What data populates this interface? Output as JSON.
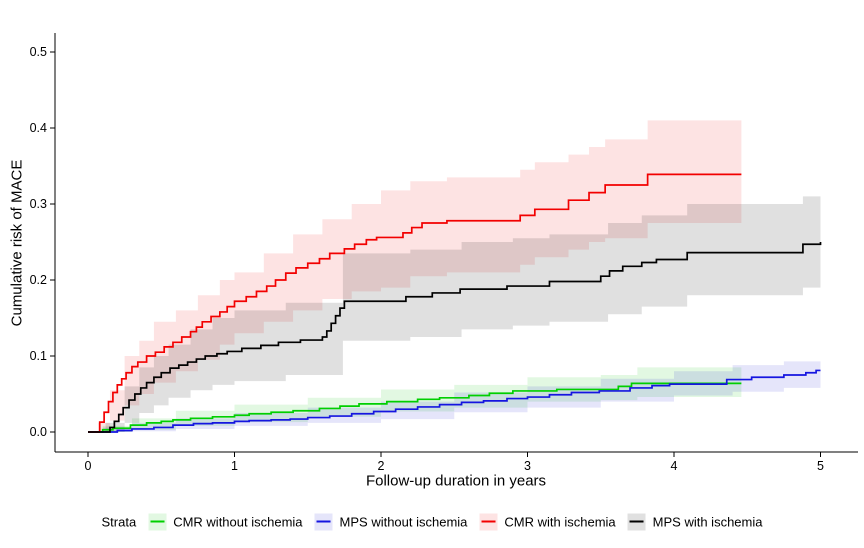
{
  "figure": {
    "background": "#FFFFFF",
    "axis_color": "#000000",
    "legend": {
      "title": "Strata",
      "position": "bottom"
    }
  },
  "chart_data": {
    "type": "line",
    "variant": "kaplan-meier-cumulative-incidence-step-curves-with-confidence-bands",
    "title": "",
    "xlabel": "Follow-up duration in years",
    "ylabel": "Cumulative risk of MACE",
    "xlim": [
      0,
      5
    ],
    "ylim": [
      0,
      0.5
    ],
    "grid": false,
    "legend_title": "Strata",
    "legend_position": "bottom",
    "x_ticks": {
      "values": [
        0,
        1,
        2,
        3,
        4,
        5
      ],
      "labels": [
        "0",
        "1",
        "2",
        "3",
        "4",
        "5"
      ]
    },
    "y_ticks": {
      "values": [
        0,
        0.1,
        0.2,
        0.3,
        0.4,
        0.5
      ],
      "labels": [
        "0.0",
        "0.1",
        "0.2",
        "0.3",
        "0.4",
        "0.5"
      ]
    },
    "series": [
      {
        "name": "CMR without ischemia",
        "color": "#00CF00",
        "band_fill": "rgba(0,190,0,0.115)",
        "steps": [
          [
            0,
            0
          ],
          [
            0.1,
            0.003
          ],
          [
            0.17,
            0.005
          ],
          [
            0.29,
            0.009
          ],
          [
            0.4,
            0.012
          ],
          [
            0.5,
            0.014
          ],
          [
            0.58,
            0.016
          ],
          [
            0.7,
            0.018
          ],
          [
            0.85,
            0.02
          ],
          [
            1.0,
            0.022
          ],
          [
            1.1,
            0.024
          ],
          [
            1.25,
            0.026
          ],
          [
            1.4,
            0.028
          ],
          [
            1.58,
            0.031
          ],
          [
            1.72,
            0.034
          ],
          [
            1.85,
            0.037
          ],
          [
            2.04,
            0.04
          ],
          [
            2.25,
            0.043
          ],
          [
            2.4,
            0.045
          ],
          [
            2.6,
            0.048
          ],
          [
            2.74,
            0.051
          ],
          [
            2.9,
            0.054
          ],
          [
            3.2,
            0.056
          ],
          [
            3.62,
            0.06
          ],
          [
            3.71,
            0.064
          ],
          [
            4.46,
            0.064
          ]
        ],
        "ci": [
          [
            0.1,
            0,
            0.008
          ],
          [
            0.3,
            0.003,
            0.018
          ],
          [
            0.6,
            0.008,
            0.028
          ],
          [
            1.0,
            0.013,
            0.036
          ],
          [
            1.5,
            0.02,
            0.045
          ],
          [
            2.0,
            0.027,
            0.056
          ],
          [
            2.5,
            0.032,
            0.062
          ],
          [
            3.0,
            0.04,
            0.072
          ],
          [
            3.5,
            0.042,
            0.075
          ],
          [
            3.75,
            0.046,
            0.085
          ],
          [
            4.46,
            0.046,
            0.085
          ]
        ]
      },
      {
        "name": "MPS without ischemia",
        "color": "#1515E0",
        "band_fill": "rgba(40,40,210,0.12)",
        "steps": [
          [
            0,
            0
          ],
          [
            0.2,
            0.002
          ],
          [
            0.3,
            0.004
          ],
          [
            0.45,
            0.006
          ],
          [
            0.58,
            0.009
          ],
          [
            0.72,
            0.011
          ],
          [
            0.85,
            0.012
          ],
          [
            1.0,
            0.014
          ],
          [
            1.1,
            0.015
          ],
          [
            1.25,
            0.016
          ],
          [
            1.38,
            0.017
          ],
          [
            1.5,
            0.019
          ],
          [
            1.65,
            0.021
          ],
          [
            1.8,
            0.024
          ],
          [
            1.95,
            0.027
          ],
          [
            2.1,
            0.03
          ],
          [
            2.25,
            0.033
          ],
          [
            2.4,
            0.036
          ],
          [
            2.55,
            0.039
          ],
          [
            2.7,
            0.041
          ],
          [
            2.86,
            0.044
          ],
          [
            3.0,
            0.046
          ],
          [
            3.15,
            0.049
          ],
          [
            3.3,
            0.052
          ],
          [
            3.49,
            0.054
          ],
          [
            3.7,
            0.058
          ],
          [
            3.85,
            0.061
          ],
          [
            3.97,
            0.063
          ],
          [
            4.36,
            0.069
          ],
          [
            4.53,
            0.072
          ],
          [
            4.75,
            0.075
          ],
          [
            4.9,
            0.078
          ],
          [
            4.97,
            0.081
          ],
          [
            5.0,
            0.081
          ]
        ],
        "ci": [
          [
            0.1,
            0,
            0.006
          ],
          [
            0.3,
            0.001,
            0.012
          ],
          [
            0.6,
            0.004,
            0.018
          ],
          [
            1.0,
            0.008,
            0.025
          ],
          [
            1.5,
            0.012,
            0.032
          ],
          [
            2.0,
            0.017,
            0.04
          ],
          [
            2.5,
            0.026,
            0.052
          ],
          [
            3.0,
            0.032,
            0.06
          ],
          [
            3.5,
            0.04,
            0.07
          ],
          [
            4.0,
            0.048,
            0.08
          ],
          [
            4.4,
            0.053,
            0.088
          ],
          [
            4.75,
            0.058,
            0.093
          ],
          [
            5.0,
            0.062,
            0.098
          ]
        ]
      },
      {
        "name": "CMR with ischemia",
        "color": "#F20000",
        "band_fill": "rgba(240,0,0,0.11)",
        "steps": [
          [
            0,
            0
          ],
          [
            0.08,
            0.013
          ],
          [
            0.11,
            0.026
          ],
          [
            0.14,
            0.04
          ],
          [
            0.17,
            0.052
          ],
          [
            0.2,
            0.062
          ],
          [
            0.23,
            0.07
          ],
          [
            0.26,
            0.078
          ],
          [
            0.3,
            0.086
          ],
          [
            0.34,
            0.092
          ],
          [
            0.4,
            0.1
          ],
          [
            0.46,
            0.105
          ],
          [
            0.52,
            0.112
          ],
          [
            0.58,
            0.118
          ],
          [
            0.64,
            0.125
          ],
          [
            0.7,
            0.132
          ],
          [
            0.74,
            0.138
          ],
          [
            0.78,
            0.145
          ],
          [
            0.84,
            0.152
          ],
          [
            0.9,
            0.158
          ],
          [
            0.95,
            0.165
          ],
          [
            1.0,
            0.172
          ],
          [
            1.08,
            0.178
          ],
          [
            1.15,
            0.185
          ],
          [
            1.22,
            0.192
          ],
          [
            1.28,
            0.2
          ],
          [
            1.35,
            0.209
          ],
          [
            1.42,
            0.216
          ],
          [
            1.5,
            0.222
          ],
          [
            1.58,
            0.228
          ],
          [
            1.65,
            0.235
          ],
          [
            1.75,
            0.241
          ],
          [
            1.82,
            0.247
          ],
          [
            1.9,
            0.253
          ],
          [
            1.97,
            0.256
          ],
          [
            2.15,
            0.262
          ],
          [
            2.21,
            0.269
          ],
          [
            2.28,
            0.275
          ],
          [
            2.45,
            0.278
          ],
          [
            2.95,
            0.285
          ],
          [
            3.05,
            0.293
          ],
          [
            3.28,
            0.305
          ],
          [
            3.42,
            0.315
          ],
          [
            3.53,
            0.325
          ],
          [
            3.82,
            0.339
          ],
          [
            4.46,
            0.339
          ]
        ],
        "ci": [
          [
            0.07,
            0,
            0.012
          ],
          [
            0.15,
            0.015,
            0.055
          ],
          [
            0.25,
            0.035,
            0.1
          ],
          [
            0.35,
            0.05,
            0.12
          ],
          [
            0.45,
            0.065,
            0.145
          ],
          [
            0.6,
            0.08,
            0.16
          ],
          [
            0.75,
            0.095,
            0.18
          ],
          [
            0.9,
            0.115,
            0.2
          ],
          [
            1.0,
            0.13,
            0.21
          ],
          [
            1.2,
            0.145,
            0.235
          ],
          [
            1.4,
            0.16,
            0.26
          ],
          [
            1.6,
            0.175,
            0.28
          ],
          [
            1.8,
            0.185,
            0.3
          ],
          [
            2.0,
            0.19,
            0.318
          ],
          [
            2.2,
            0.205,
            0.33
          ],
          [
            2.45,
            0.21,
            0.335
          ],
          [
            2.95,
            0.22,
            0.345
          ],
          [
            3.05,
            0.23,
            0.355
          ],
          [
            3.28,
            0.24,
            0.365
          ],
          [
            3.42,
            0.25,
            0.375
          ],
          [
            3.53,
            0.255,
            0.385
          ],
          [
            3.82,
            0.275,
            0.41
          ],
          [
            4.46,
            0.275,
            0.41
          ]
        ]
      },
      {
        "name": "MPS with ischemia",
        "color": "#000000",
        "band_fill": "rgba(0,0,0,0.12)",
        "steps": [
          [
            0,
            0
          ],
          [
            0.15,
            0.006
          ],
          [
            0.18,
            0.014
          ],
          [
            0.21,
            0.023
          ],
          [
            0.24,
            0.032
          ],
          [
            0.28,
            0.042
          ],
          [
            0.32,
            0.05
          ],
          [
            0.36,
            0.058
          ],
          [
            0.4,
            0.065
          ],
          [
            0.45,
            0.072
          ],
          [
            0.5,
            0.078
          ],
          [
            0.56,
            0.084
          ],
          [
            0.62,
            0.088
          ],
          [
            0.68,
            0.092
          ],
          [
            0.74,
            0.096
          ],
          [
            0.8,
            0.1
          ],
          [
            0.88,
            0.103
          ],
          [
            0.95,
            0.106
          ],
          [
            1.05,
            0.11
          ],
          [
            1.18,
            0.114
          ],
          [
            1.3,
            0.118
          ],
          [
            1.45,
            0.121
          ],
          [
            1.6,
            0.125
          ],
          [
            1.63,
            0.133
          ],
          [
            1.66,
            0.143
          ],
          [
            1.69,
            0.153
          ],
          [
            1.72,
            0.163
          ],
          [
            1.75,
            0.172
          ],
          [
            2.17,
            0.178
          ],
          [
            2.35,
            0.183
          ],
          [
            2.54,
            0.188
          ],
          [
            2.86,
            0.192
          ],
          [
            3.15,
            0.198
          ],
          [
            3.5,
            0.205
          ],
          [
            3.56,
            0.212
          ],
          [
            3.65,
            0.218
          ],
          [
            3.78,
            0.223
          ],
          [
            3.88,
            0.227
          ],
          [
            4.09,
            0.236
          ],
          [
            4.88,
            0.247
          ],
          [
            5.0,
            0.25
          ]
        ],
        "ci": [
          [
            0.12,
            0,
            0.012
          ],
          [
            0.25,
            0.012,
            0.06
          ],
          [
            0.35,
            0.025,
            0.085
          ],
          [
            0.45,
            0.035,
            0.1
          ],
          [
            0.55,
            0.045,
            0.115
          ],
          [
            0.7,
            0.055,
            0.135
          ],
          [
            0.85,
            0.062,
            0.15
          ],
          [
            1.0,
            0.067,
            0.16
          ],
          [
            1.35,
            0.075,
            0.17
          ],
          [
            1.74,
            0.12,
            0.235
          ],
          [
            2.2,
            0.125,
            0.24
          ],
          [
            2.55,
            0.135,
            0.25
          ],
          [
            2.9,
            0.14,
            0.255
          ],
          [
            3.15,
            0.145,
            0.26
          ],
          [
            3.55,
            0.155,
            0.275
          ],
          [
            3.78,
            0.165,
            0.285
          ],
          [
            4.09,
            0.18,
            0.3
          ],
          [
            4.88,
            0.19,
            0.31
          ],
          [
            5.0,
            0.195,
            0.315
          ]
        ]
      }
    ]
  }
}
